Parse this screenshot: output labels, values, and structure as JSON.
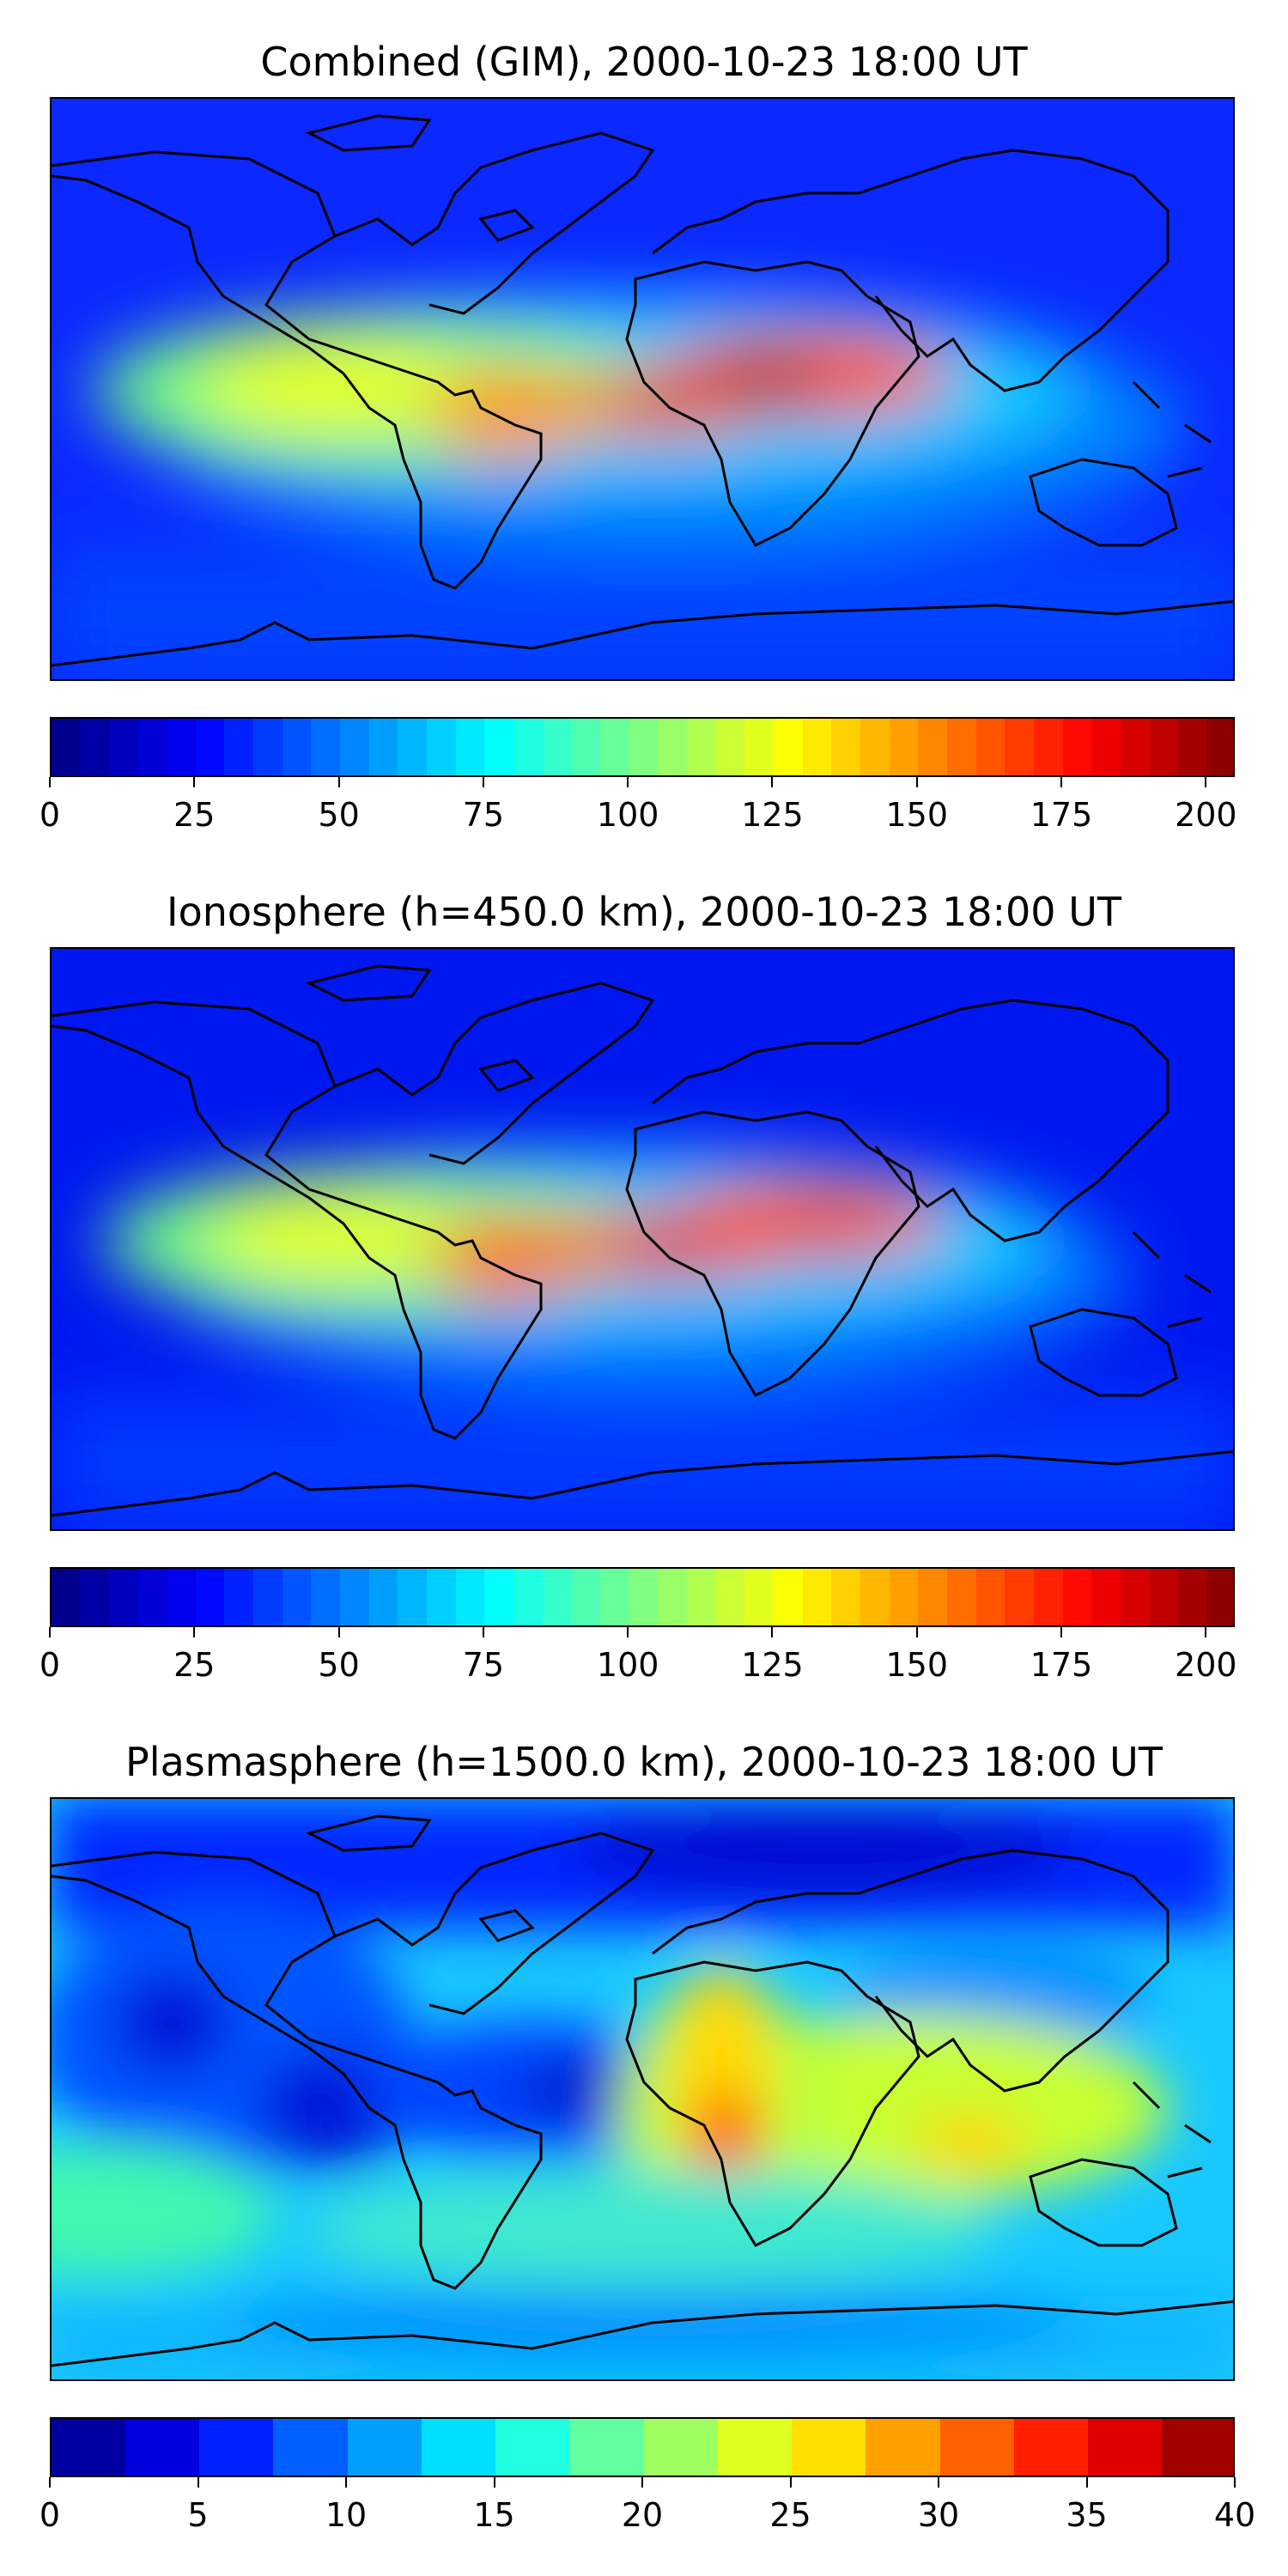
{
  "panels": [
    {
      "title": "Combined (GIM), 2000-10-23 18:00 UT",
      "colorbar": {
        "min": 0,
        "max": 205,
        "levels": 41,
        "ticks": [
          "0",
          "25",
          "50",
          "75",
          "100",
          "125",
          "150",
          "175",
          "200"
        ]
      },
      "max_value_region": "tropical Africa / Horn of Africa",
      "peak_value_approx": 200
    },
    {
      "title": "Ionosphere  (h=450.0 km), 2000-10-23 18:00 UT",
      "colorbar": {
        "min": 0,
        "max": 205,
        "levels": 41,
        "ticks": [
          "0",
          "25",
          "50",
          "75",
          "100",
          "125",
          "150",
          "175",
          "200"
        ]
      },
      "max_value_region": "tropical South America and Africa",
      "peak_value_approx": 190
    },
    {
      "title": "Plasmasphere (h=1500.0 km), 2000-10-23 18:00 UT",
      "colorbar": {
        "min": 0,
        "max": 40,
        "levels": 16,
        "ticks": [
          "0",
          "5",
          "10",
          "15",
          "20",
          "25",
          "30",
          "35",
          "40"
        ]
      },
      "max_value_region": "southern Africa",
      "peak_value_approx": 32
    }
  ],
  "colormap": "jet"
}
